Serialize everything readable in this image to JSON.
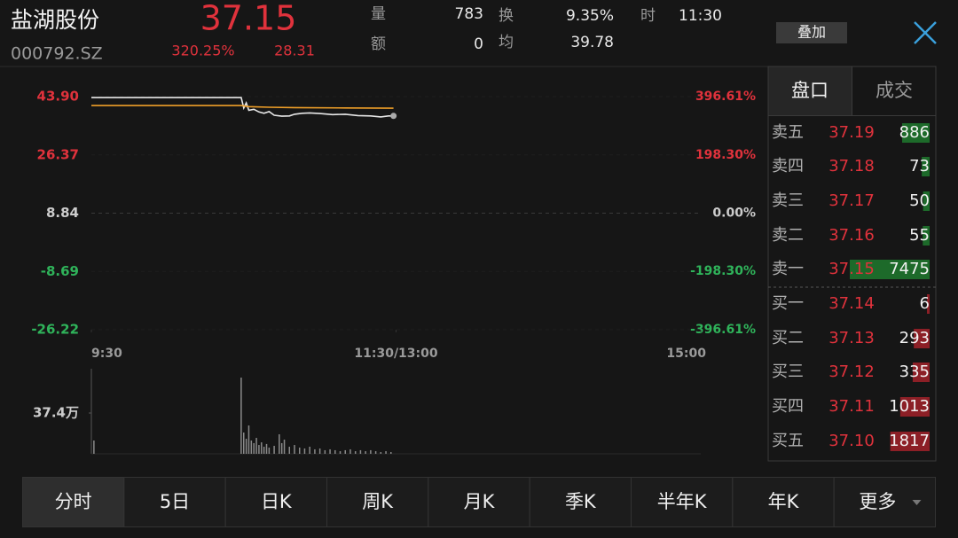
{
  "header": {
    "name": "盐湖股份",
    "code": "000792.SZ",
    "price": "37.15",
    "change_pct": "320.25%",
    "change": "28.31",
    "overlay_button": "叠加"
  },
  "stats": [
    {
      "label": "量",
      "value": "783"
    },
    {
      "label": "额",
      "value": "0"
    },
    {
      "label": "换",
      "value": "9.35%"
    },
    {
      "label": "均",
      "value": "39.78"
    },
    {
      "label": "时",
      "value": "11:30"
    }
  ],
  "chart_data": [
    {
      "type": "line",
      "xlim": [
        0,
        240
      ],
      "xticks": [
        {
          "value": 0,
          "label": "9:30"
        },
        {
          "value": 120,
          "label": "11:30/13:00"
        },
        {
          "value": 240,
          "label": "15:00"
        }
      ],
      "ylim": [
        -26.22,
        43.9
      ],
      "yticks": [
        {
          "value": 43.9,
          "label": "43.90"
        },
        26.37,
        8.84,
        -8.69,
        -26.22
      ],
      "y2lim": [
        -396.61,
        396.61
      ],
      "y2ticks": [
        {
          "value": 396.61,
          "label": "396.61%"
        },
        {
          "value": 198.3,
          "label": "198.30%"
        },
        {
          "value": 0,
          "label": "0.00%"
        },
        {
          "value": -198.3,
          "label": "-198.30%"
        },
        {
          "value": -396.61,
          "label": "-396.61%"
        }
      ],
      "grid": true,
      "series": [
        {
          "color": "#e8e8e8",
          "x": [
            0,
            59,
            60,
            61,
            62,
            64,
            66,
            68,
            70,
            72,
            75,
            78,
            80,
            83,
            86,
            90,
            95,
            100,
            105,
            110,
            114,
            117,
            119
          ],
          "values": [
            43.6,
            43.6,
            40.5,
            42.0,
            39.8,
            40.1,
            39.3,
            38.9,
            39.4,
            38.3,
            38.0,
            38.1,
            38.6,
            38.9,
            39.0,
            38.8,
            38.5,
            38.6,
            38.2,
            38.1,
            37.8,
            38.1,
            38.1
          ]
        },
        {
          "color": "#f0a028",
          "x": [
            0,
            59,
            62,
            70,
            80,
            100,
            119
          ],
          "values": [
            41.2,
            41.2,
            40.9,
            40.7,
            40.6,
            40.5,
            40.4
          ]
        }
      ]
    },
    {
      "type": "bar",
      "color": "#8a8a8a",
      "xlim": [
        0,
        240
      ],
      "ylim": [
        0,
        748000
      ],
      "yticks": [
        {
          "value": 374000,
          "label": "37.4万"
        }
      ],
      "x": [
        1,
        59,
        60,
        61,
        62,
        63,
        64,
        65,
        66,
        67,
        68,
        69,
        70,
        72,
        74,
        75,
        76,
        78,
        80,
        82,
        84,
        86,
        88,
        90,
        92,
        94,
        96,
        98,
        100,
        102,
        104,
        106,
        108,
        110,
        112,
        114,
        116,
        118
      ],
      "values": [
        122000,
        699000,
        195000,
        138000,
        260000,
        122000,
        98000,
        146000,
        81000,
        105000,
        65000,
        90000,
        57000,
        73000,
        179000,
        98000,
        130000,
        65000,
        81000,
        57000,
        49000,
        65000,
        41000,
        49000,
        33000,
        41000,
        33000,
        24000,
        33000,
        41000,
        24000,
        33000,
        24000,
        33000,
        24000,
        16000,
        24000,
        16000
      ]
    }
  ],
  "order_book": {
    "tabs": [
      "盘口",
      "成交"
    ],
    "asks": [
      {
        "label": "卖五",
        "price": "37.19",
        "volume": 886
      },
      {
        "label": "卖四",
        "price": "37.18",
        "volume": 73
      },
      {
        "label": "卖三",
        "price": "37.17",
        "volume": 50
      },
      {
        "label": "卖二",
        "price": "37.16",
        "volume": 55
      },
      {
        "label": "卖一",
        "price": "37.15",
        "volume": 7475
      }
    ],
    "bids": [
      {
        "label": "买一",
        "price": "37.14",
        "volume": 6
      },
      {
        "label": "买二",
        "price": "37.13",
        "volume": 293
      },
      {
        "label": "买三",
        "price": "37.12",
        "volume": 335
      },
      {
        "label": "买四",
        "price": "37.11",
        "volume": 1013
      },
      {
        "label": "买五",
        "price": "37.10",
        "volume": 1817
      }
    ]
  },
  "tabs": [
    "分时",
    "5日",
    "日K",
    "周K",
    "月K",
    "季K",
    "半年K",
    "年K",
    "更多"
  ]
}
